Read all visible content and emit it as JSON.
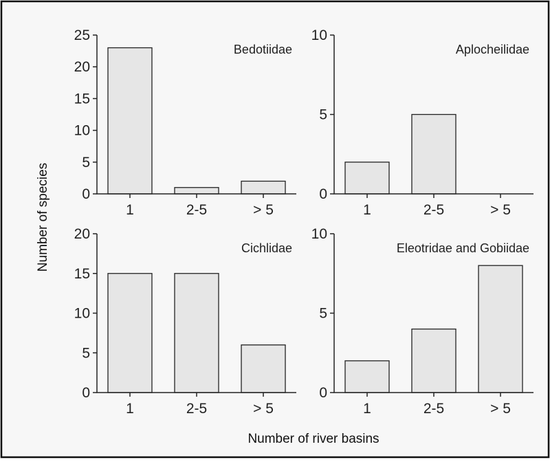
{
  "chart_data": {
    "type": "bar",
    "xlabel": "Number of river basins",
    "ylabel": "Number of species",
    "categories": [
      "1",
      "2-5",
      "> 5"
    ],
    "panels": [
      {
        "title": "Bedotiidae",
        "values": [
          23,
          1,
          2
        ],
        "ylim": [
          0,
          25
        ],
        "yticks": [
          0,
          5,
          10,
          15,
          20,
          25
        ]
      },
      {
        "title": "Aplocheilidae",
        "values": [
          2,
          5,
          0
        ],
        "ylim": [
          0,
          10
        ],
        "yticks": [
          0,
          5,
          10
        ]
      },
      {
        "title": "Cichlidae",
        "values": [
          15,
          15,
          6
        ],
        "ylim": [
          0,
          20
        ],
        "yticks": [
          0,
          5,
          10,
          15,
          20
        ]
      },
      {
        "title": "Eleotridae and Gobiidae",
        "values": [
          2,
          4,
          8
        ],
        "ylim": [
          0,
          10
        ],
        "yticks": [
          0,
          5,
          10
        ]
      }
    ],
    "grid": false,
    "colors": {
      "bar_fill": "#e6e6e6",
      "bar_stroke": "#222222",
      "background": "#f7f7f7"
    }
  }
}
